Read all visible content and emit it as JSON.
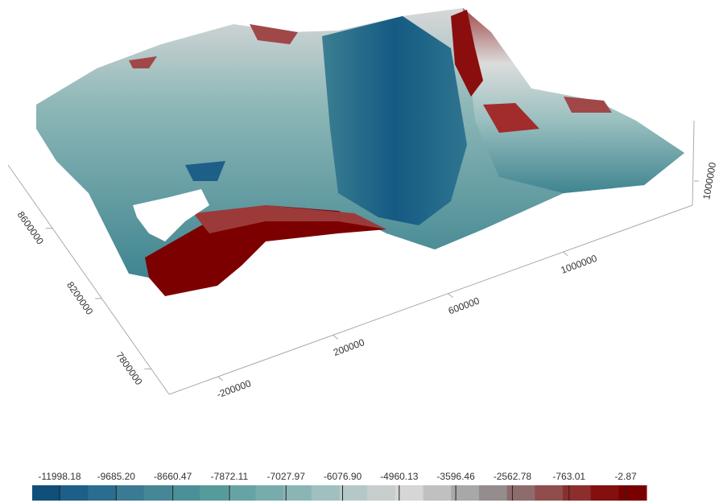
{
  "chart_data": {
    "type": "surface",
    "xlim": [
      -370000,
      1450000
    ],
    "xticks": [
      -200000,
      200000,
      600000,
      1000000
    ],
    "ylim": [
      7655000,
      8960000
    ],
    "yticks": [
      7800000,
      8200000,
      8600000
    ],
    "zlim": [
      0,
      3500000
    ],
    "zticks": [
      1000000
    ],
    "colorbar": {
      "ticks": [
        -11998.18,
        {
          "value": -9685.2,
          "label": "-9685.20"
        },
        -8660.47,
        -7872.11,
        -7027.97,
        {
          "value": -6076.9,
          "label": "-6076.90"
        },
        -4960.13,
        -3596.46,
        -2562.78,
        -763.01,
        -2.87
      ],
      "colors": [
        "#0f4f7a",
        "#1d5f86",
        "#2b6d8e",
        "#3b7a93",
        "#458697",
        "#4b9098",
        "#569b9c",
        "#66a3a4",
        "#78acac",
        "#8bb5b5",
        "#a0bfbf",
        "#b5c8c8",
        "#c8cece",
        "#d6d6d6",
        "#c0c0c0",
        "#a8a8a8",
        "#958d8d",
        "#8e6c6c",
        "#8f4d4d",
        "#8c2e2e",
        "#840f0f",
        "#7a0000"
      ]
    }
  }
}
